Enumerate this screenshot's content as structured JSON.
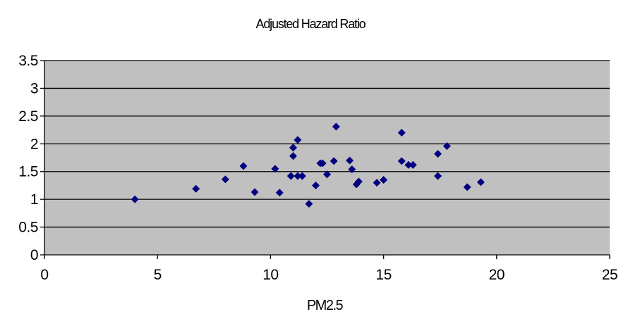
{
  "chart_data": {
    "type": "scatter",
    "title": "Adjusted Hazard Ratio",
    "xlabel": "PM2.5",
    "ylabel": "",
    "xlim": [
      0,
      25
    ],
    "ylim": [
      0,
      3.5
    ],
    "x_ticks": [
      "0",
      "5",
      "10",
      "15",
      "20",
      "25"
    ],
    "y_ticks": [
      "0",
      "0.5",
      "1",
      "1.5",
      "2",
      "2.5",
      "3",
      "3.5"
    ],
    "grid": "horizontal major gridlines",
    "legend": "none",
    "colors": {
      "plot_background": "#c0c0c0",
      "marker": "#000080",
      "gridline": "#000000"
    },
    "series": [
      {
        "marker": "diamond",
        "points": [
          [
            4.0,
            1.0
          ],
          [
            6.7,
            1.19
          ],
          [
            8.0,
            1.36
          ],
          [
            8.8,
            1.6
          ],
          [
            9.3,
            1.13
          ],
          [
            10.2,
            1.55
          ],
          [
            10.4,
            1.12
          ],
          [
            10.9,
            1.42
          ],
          [
            11.0,
            1.93
          ],
          [
            11.0,
            1.78
          ],
          [
            11.2,
            2.07
          ],
          [
            11.2,
            1.42
          ],
          [
            11.4,
            1.42
          ],
          [
            11.7,
            0.92
          ],
          [
            12.0,
            1.25
          ],
          [
            12.2,
            1.65
          ],
          [
            12.3,
            1.65
          ],
          [
            12.5,
            1.45
          ],
          [
            12.8,
            1.69
          ],
          [
            12.9,
            2.31
          ],
          [
            13.5,
            1.7
          ],
          [
            13.6,
            1.54
          ],
          [
            13.8,
            1.27
          ],
          [
            13.9,
            1.32
          ],
          [
            14.7,
            1.3
          ],
          [
            15.0,
            1.35
          ],
          [
            15.8,
            2.2
          ],
          [
            15.8,
            1.69
          ],
          [
            16.1,
            1.62
          ],
          [
            16.3,
            1.62
          ],
          [
            17.4,
            1.82
          ],
          [
            17.4,
            1.42
          ],
          [
            17.8,
            1.96
          ],
          [
            18.7,
            1.22
          ],
          [
            19.3,
            1.31
          ]
        ]
      }
    ]
  }
}
